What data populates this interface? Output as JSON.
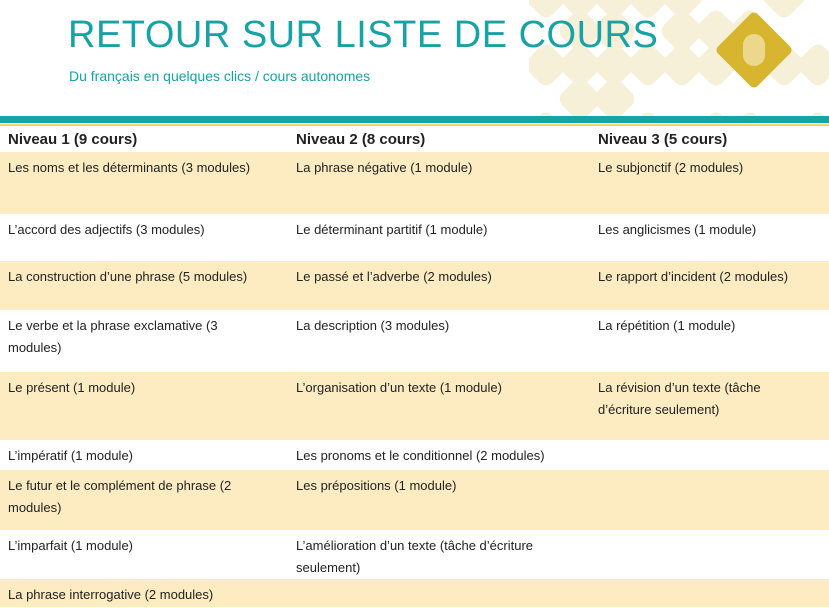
{
  "header": {
    "title": "RETOUR SUR LISTE DE COURS",
    "subtitle": "Du français en quelques clics / cours autonomes",
    "logo_icon": "computer-mouse-wifi-icon"
  },
  "colors": {
    "accent": "#17a2a6",
    "row_highlight": "#fdecc2",
    "logo": "#d8b52e"
  },
  "table": {
    "headers": [
      "Niveau 1 (9 cours)",
      "Niveau 2 (8 cours)",
      "Niveau 3 (5 cours)"
    ],
    "rows": [
      [
        "Les noms et les déterminants  (3 modules)",
        "La phrase négative (1 module)",
        "Le subjonctif (2 modules)"
      ],
      [
        "L’accord des adjectifs (3 modules)",
        "Le déterminant  partitif (1 module)",
        "Les anglicismes  (1 module)"
      ],
      [
        "La construction d’une phrase (5 modules)",
        "Le passé et l’adverbe  (2 modules)",
        "Le rapport d’incident  (2 modules)"
      ],
      [
        "Le verbe et la phrase exclamative (3 modules)",
        "La description  (3 modules)",
        "La répétition (1 module)"
      ],
      [
        "Le présent (1 module)",
        "L’organisation d’un texte (1 module)",
        "La révision d’un texte (tâche d’écriture seulement)"
      ],
      [
        "L’impératif (1 module)",
        "Les pronoms et le conditionnel  (2 modules)",
        ""
      ],
      [
        "Le futur et le complément  de phrase (2 modules)",
        "Les prépositions  (1 module)",
        ""
      ],
      [
        "L’imparfait (1 module)",
        "L’amélioration  d’un texte (tâche d’écriture seulement)",
        ""
      ],
      [
        "La phrase interrogative (2 modules)",
        "",
        ""
      ]
    ]
  }
}
